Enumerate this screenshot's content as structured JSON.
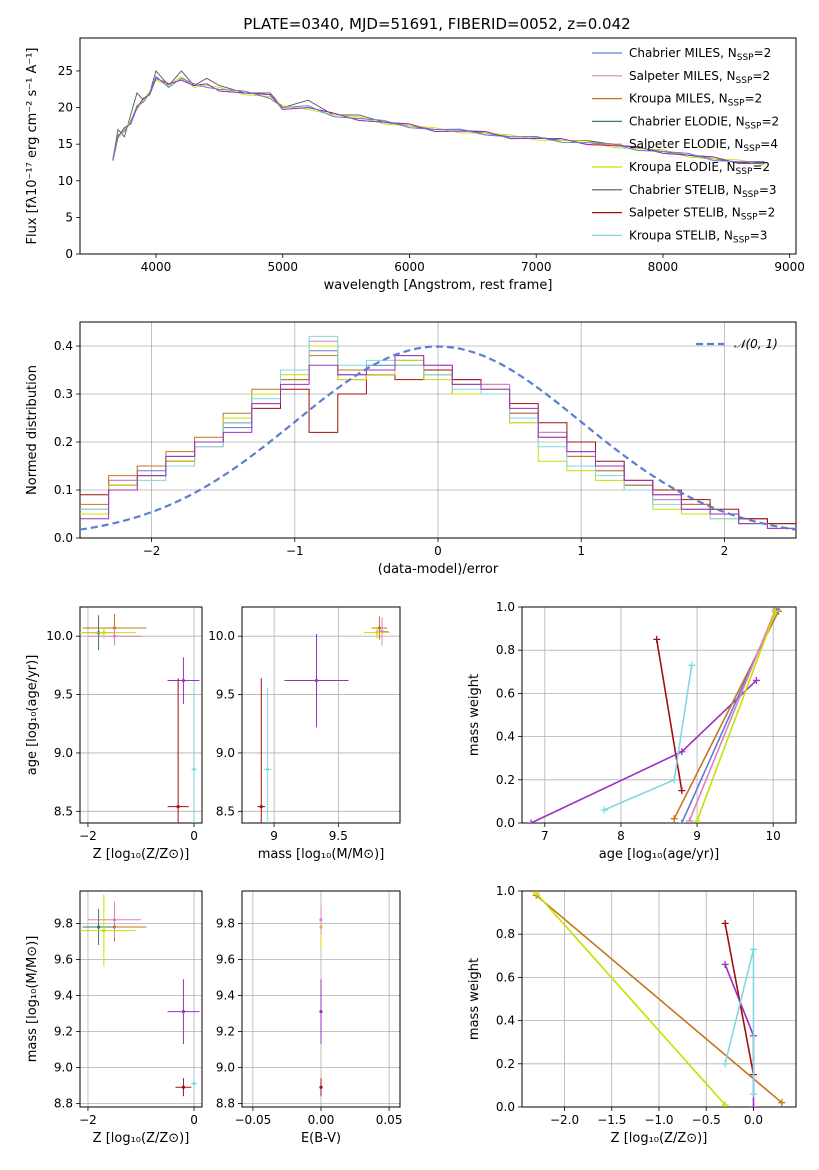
{
  "figure_title": "PLATE=0340, MJD=51691, FIBERID=0052, z=0.042",
  "colors": {
    "chabrier_miles": "#5b7fd0",
    "salpeter_miles": "#e07fbf",
    "kroupa_miles": "#c8741a",
    "chabrier_elodie": "#3a7a5a",
    "salpeter_elodie": "#e8732a",
    "kroupa_elodie": "#c8e000",
    "chabrier_stelib": "#555555",
    "salpeter_stelib": "#a01010",
    "kroupa_stelib": "#80d8e0",
    "model_purple": "#9b30c0",
    "gaussian": "#5b7fd0",
    "grid": "#b0b0b0"
  },
  "legend": [
    {
      "label": "Chabrier MILES, N",
      "sub": "SSP",
      "tail": "=2",
      "color_key": "chabrier_miles"
    },
    {
      "label": "Salpeter MILES, N",
      "sub": "SSP",
      "tail": "=2",
      "color_key": "salpeter_miles"
    },
    {
      "label": "Kroupa MILES, N",
      "sub": "SSP",
      "tail": "=2",
      "color_key": "kroupa_miles"
    },
    {
      "label": "Chabrier ELODIE, N",
      "sub": "SSP",
      "tail": "=2",
      "color_key": "chabrier_elodie"
    },
    {
      "label": "Salpeter ELODIE, N",
      "sub": "SSP",
      "tail": "=4",
      "color_key": "salpeter_elodie"
    },
    {
      "label": "Kroupa ELODIE, N",
      "sub": "SSP",
      "tail": "=2",
      "color_key": "kroupa_elodie"
    },
    {
      "label": "Chabrier STELIB, N",
      "sub": "SSP",
      "tail": "=3",
      "color_key": "chabrier_stelib"
    },
    {
      "label": "Salpeter STELIB, N",
      "sub": "SSP",
      "tail": "=2",
      "color_key": "salpeter_stelib"
    },
    {
      "label": "Kroupa STELIB, N",
      "sub": "SSP",
      "tail": "=3",
      "color_key": "kroupa_stelib"
    }
  ],
  "chart_data": [
    {
      "id": "spectrum",
      "type": "line",
      "xlabel": "wavelength [Angstrom, rest frame]",
      "ylabel": "Flux [fλ10⁻¹⁷ erg cm⁻² s⁻¹ A⁻¹]",
      "xlim": [
        3400,
        9050
      ],
      "ylim": [
        0,
        29.5
      ],
      "xticks": [
        4000,
        5000,
        6000,
        7000,
        8000,
        9000
      ],
      "yticks": [
        0,
        5,
        10,
        15,
        20,
        25
      ],
      "grid": false,
      "legend_position": "upper-right",
      "data_x": [
        3660,
        3700,
        3750,
        3800,
        3850,
        3900,
        3950,
        4000,
        4100,
        4200,
        4300,
        4400,
        4500,
        4700,
        4900,
        5000,
        5200,
        5400,
        5600,
        5800,
        6000,
        6200,
        6400,
        6600,
        6800,
        7000,
        7200,
        7400,
        7600,
        7800,
        8000,
        8200,
        8400,
        8600,
        8800
      ],
      "data_y": [
        13,
        17,
        16,
        19,
        22,
        21,
        22,
        25,
        23,
        25,
        23,
        24,
        23,
        22,
        22,
        20,
        21,
        19,
        19,
        18,
        17.5,
        17,
        17,
        16.5,
        16,
        16,
        15.5,
        15.5,
        15,
        14.5,
        14,
        13.5,
        13,
        12.5,
        12.5
      ],
      "model_y": [
        13,
        16,
        17,
        18,
        20,
        21,
        22,
        24,
        23,
        24,
        23,
        23,
        22.5,
        22,
        21.5,
        20,
        20,
        19,
        18.5,
        18,
        17.5,
        17,
        16.8,
        16.5,
        16,
        15.8,
        15.5,
        15.2,
        14.8,
        14.4,
        14,
        13.5,
        13,
        12.6,
        12.4
      ]
    },
    {
      "id": "residuals",
      "type": "line",
      "xlabel": "(data-model)/error",
      "ylabel": "Normed distribution",
      "xlim": [
        -2.5,
        2.5
      ],
      "ylim": [
        0,
        0.45
      ],
      "xticks": [
        -2,
        -1,
        0,
        1,
        2
      ],
      "yticks": [
        0.0,
        0.1,
        0.2,
        0.3,
        0.4
      ],
      "grid": true,
      "legend_position": "upper-right",
      "gaussian_label": "𝒩(0, 1)",
      "x": [
        -2.4,
        -2.2,
        -2.0,
        -1.8,
        -1.6,
        -1.4,
        -1.2,
        -1.0,
        -0.8,
        -0.6,
        -0.4,
        -0.2,
        0.0,
        0.2,
        0.4,
        0.6,
        0.8,
        1.0,
        1.2,
        1.4,
        1.6,
        1.8,
        2.0,
        2.2,
        2.4
      ],
      "series": [
        {
          "color_key": "chabrier_miles",
          "values": [
            0.05,
            0.12,
            0.14,
            0.17,
            0.2,
            0.23,
            0.3,
            0.33,
            0.39,
            0.34,
            0.36,
            0.37,
            0.35,
            0.33,
            0.32,
            0.26,
            0.22,
            0.18,
            0.15,
            0.11,
            0.08,
            0.07,
            0.05,
            0.04,
            0.03
          ]
        },
        {
          "color_key": "salpeter_miles",
          "values": [
            0.06,
            0.12,
            0.15,
            0.16,
            0.19,
            0.25,
            0.28,
            0.35,
            0.41,
            0.33,
            0.34,
            0.38,
            0.36,
            0.3,
            0.32,
            0.24,
            0.22,
            0.17,
            0.14,
            0.12,
            0.08,
            0.06,
            0.05,
            0.03,
            0.02
          ]
        },
        {
          "color_key": "kroupa_miles",
          "values": [
            0.07,
            0.13,
            0.15,
            0.18,
            0.21,
            0.26,
            0.31,
            0.33,
            0.38,
            0.35,
            0.35,
            0.36,
            0.34,
            0.32,
            0.3,
            0.26,
            0.21,
            0.17,
            0.14,
            0.11,
            0.09,
            0.07,
            0.05,
            0.04,
            0.03
          ]
        },
        {
          "color_key": "salpeter_stelib",
          "values": [
            0.09,
            0.11,
            0.13,
            0.16,
            0.2,
            0.24,
            0.27,
            0.31,
            0.22,
            0.3,
            0.34,
            0.33,
            0.35,
            0.33,
            0.3,
            0.28,
            0.24,
            0.2,
            0.16,
            0.12,
            0.1,
            0.08,
            0.06,
            0.04,
            0.03
          ]
        },
        {
          "color_key": "kroupa_elodie",
          "values": [
            0.05,
            0.11,
            0.13,
            0.16,
            0.2,
            0.25,
            0.3,
            0.34,
            0.4,
            0.33,
            0.34,
            0.37,
            0.33,
            0.3,
            0.31,
            0.24,
            0.16,
            0.14,
            0.12,
            0.1,
            0.06,
            0.05,
            0.04,
            0.03,
            0.02
          ]
        },
        {
          "color_key": "kroupa_stelib",
          "values": [
            0.06,
            0.1,
            0.12,
            0.15,
            0.19,
            0.24,
            0.29,
            0.35,
            0.42,
            0.36,
            0.37,
            0.36,
            0.34,
            0.31,
            0.3,
            0.25,
            0.19,
            0.15,
            0.13,
            0.1,
            0.07,
            0.06,
            0.04,
            0.03,
            0.02
          ]
        },
        {
          "color_key": "model_purple",
          "values": [
            0.04,
            0.1,
            0.13,
            0.17,
            0.2,
            0.22,
            0.28,
            0.32,
            0.36,
            0.34,
            0.35,
            0.38,
            0.36,
            0.32,
            0.31,
            0.27,
            0.21,
            0.18,
            0.15,
            0.12,
            0.09,
            0.06,
            0.05,
            0.03,
            0.02
          ]
        }
      ]
    },
    {
      "id": "age_vs_Z",
      "type": "scatter",
      "xlabel": "Z [log₁₀(Z/Z⊙)]",
      "ylabel": "age  [log₁₀(age/yr)]",
      "xlim": [
        -2.15,
        0.15
      ],
      "ylim": [
        8.4,
        10.25
      ],
      "xticks": [
        -2,
        0
      ],
      "yticks": [
        8.5,
        9.0,
        9.5,
        10.0
      ],
      "grid": true,
      "points": [
        {
          "x": -1.5,
          "y": 10.07,
          "xerr": 0.6,
          "yerr": 0.12,
          "color_key": "kroupa_miles"
        },
        {
          "x": -1.5,
          "y": 10.0,
          "xerr": 0.5,
          "yerr": 0.08,
          "color_key": "salpeter_miles"
        },
        {
          "x": -1.8,
          "y": 10.03,
          "xerr": 0.3,
          "yerr": 0.15,
          "color_key": "chabrier_elodie"
        },
        {
          "x": -1.7,
          "y": 10.03,
          "xerr": 0.6,
          "yerr": 0.05,
          "color_key": "kroupa_elodie"
        },
        {
          "x": -0.2,
          "y": 9.62,
          "xerr": 0.3,
          "yerr": 0.2,
          "color_key": "model_purple"
        },
        {
          "x": -0.3,
          "y": 8.54,
          "xerr": 0.2,
          "yerr": 1.1,
          "color_key": "salpeter_stelib"
        },
        {
          "x": 0.0,
          "y": 8.86,
          "xerr": 0.05,
          "yerr": 0.7,
          "color_key": "kroupa_stelib"
        }
      ]
    },
    {
      "id": "age_vs_mass",
      "type": "scatter",
      "xlabel": "mass [log₁₀(M/M⊙)]",
      "ylabel": "",
      "xlim": [
        8.75,
        9.98
      ],
      "ylim": [
        8.4,
        10.25
      ],
      "xticks": [
        9.0,
        9.5
      ],
      "yticks": [
        8.5,
        9.0,
        9.5,
        10.0
      ],
      "grid": true,
      "points": [
        {
          "x": 9.82,
          "y": 10.07,
          "xerr": 0.06,
          "yerr": 0.1,
          "color_key": "kroupa_miles"
        },
        {
          "x": 9.84,
          "y": 10.04,
          "xerr": 0.05,
          "yerr": 0.12,
          "color_key": "salpeter_miles"
        },
        {
          "x": 9.8,
          "y": 10.03,
          "xerr": 0.1,
          "yerr": 0.05,
          "color_key": "kroupa_elodie"
        },
        {
          "x": 9.33,
          "y": 9.62,
          "xerr": 0.25,
          "yerr": 0.4,
          "color_key": "model_purple"
        },
        {
          "x": 8.9,
          "y": 8.54,
          "xerr": 0.03,
          "yerr": 1.1,
          "color_key": "salpeter_stelib"
        },
        {
          "x": 8.95,
          "y": 8.86,
          "xerr": 0.03,
          "yerr": 0.7,
          "color_key": "kroupa_stelib"
        }
      ]
    },
    {
      "id": "mass_weight_vs_age",
      "type": "line",
      "xlabel": "age  [log₁₀(age/yr)]",
      "ylabel": "mass weight",
      "xlim": [
        6.7,
        10.3
      ],
      "ylim": [
        0,
        1.0
      ],
      "xticks": [
        7,
        8,
        9,
        10
      ],
      "yticks": [
        0.0,
        0.2,
        0.4,
        0.6,
        0.8,
        1.0
      ],
      "grid": true,
      "series": [
        {
          "color_key": "salpeter_stelib",
          "x": [
            8.47,
            8.8
          ],
          "y": [
            0.85,
            0.15
          ]
        },
        {
          "color_key": "model_purple",
          "x": [
            6.82,
            8.8,
            9.78
          ],
          "y": [
            0.0,
            0.33,
            0.66
          ]
        },
        {
          "color_key": "kroupa_stelib",
          "x": [
            7.78,
            8.7,
            8.93
          ],
          "y": [
            0.06,
            0.2,
            0.73
          ]
        },
        {
          "color_key": "kroupa_miles",
          "x": [
            8.7,
            10.07
          ],
          "y": [
            0.02,
            0.98
          ]
        },
        {
          "color_key": "chabrier_miles",
          "x": [
            8.8,
            10.05
          ],
          "y": [
            0.0,
            0.99
          ]
        },
        {
          "color_key": "salpeter_miles",
          "x": [
            8.9,
            10.02
          ],
          "y": [
            0.01,
            0.98
          ]
        },
        {
          "color_key": "kroupa_elodie",
          "x": [
            9.0,
            10.03
          ],
          "y": [
            0.01,
            0.98
          ]
        }
      ]
    },
    {
      "id": "mass_vs_Z",
      "type": "scatter",
      "xlabel": "Z [log₁₀(Z/Z⊙)]",
      "ylabel": "mass [log₁₀(M/M⊙)]",
      "xlim": [
        -2.15,
        0.15
      ],
      "ylim": [
        8.78,
        9.98
      ],
      "xticks": [
        -2,
        0
      ],
      "yticks": [
        8.8,
        9.0,
        9.2,
        9.4,
        9.6,
        9.8
      ],
      "grid": true,
      "points": [
        {
          "x": -1.5,
          "y": 9.78,
          "xerr": 0.6,
          "yerr": 0.08,
          "color_key": "kroupa_miles"
        },
        {
          "x": -1.5,
          "y": 9.82,
          "xerr": 0.5,
          "yerr": 0.1,
          "color_key": "salpeter_miles"
        },
        {
          "x": -1.8,
          "y": 9.78,
          "xerr": 0.3,
          "yerr": 0.1,
          "color_key": "chabrier_elodie"
        },
        {
          "x": -1.7,
          "y": 9.76,
          "xerr": 0.6,
          "yerr": 0.2,
          "color_key": "kroupa_elodie"
        },
        {
          "x": -0.2,
          "y": 9.31,
          "xerr": 0.3,
          "yerr": 0.18,
          "color_key": "model_purple"
        },
        {
          "x": -0.2,
          "y": 8.89,
          "xerr": 0.15,
          "yerr": 0.05,
          "color_key": "salpeter_stelib"
        },
        {
          "x": 0.0,
          "y": 8.91,
          "xerr": 0.05,
          "yerr": 0.05,
          "color_key": "kroupa_stelib"
        }
      ]
    },
    {
      "id": "mass_vs_EBV",
      "type": "scatter",
      "xlabel": "E(B-V)",
      "ylabel": "",
      "xlim": [
        -0.058,
        0.058
      ],
      "ylim": [
        8.78,
        9.98
      ],
      "xticks": [
        -0.05,
        0.0,
        0.05
      ],
      "yticks": [
        8.8,
        9.0,
        9.2,
        9.4,
        9.6,
        9.8
      ],
      "grid": true,
      "points": [
        {
          "x": 0.0,
          "y": 9.78,
          "xerr": 0.0,
          "yerr": 0.12,
          "color_key": "kroupa_elodie"
        },
        {
          "x": 0.0,
          "y": 9.82,
          "xerr": 0.0,
          "yerr": 0.08,
          "color_key": "salpeter_miles"
        },
        {
          "x": 0.0,
          "y": 9.31,
          "xerr": 0.0,
          "yerr": 0.18,
          "color_key": "model_purple"
        },
        {
          "x": 0.0,
          "y": 8.89,
          "xerr": 0.0,
          "yerr": 0.05,
          "color_key": "salpeter_stelib"
        }
      ]
    },
    {
      "id": "mass_weight_vs_Z",
      "type": "line",
      "xlabel": "Z [log₁₀(Z/Z⊙)]",
      "ylabel": "mass weight",
      "xlim": [
        -2.45,
        0.45
      ],
      "ylim": [
        0,
        1.0
      ],
      "xticks": [
        -2.0,
        -1.5,
        -1.0,
        -0.5,
        0.0
      ],
      "yticks": [
        0.0,
        0.2,
        0.4,
        0.6,
        0.8,
        1.0
      ],
      "grid": true,
      "series": [
        {
          "color_key": "kroupa_miles",
          "x": [
            -2.3,
            0.3
          ],
          "y": [
            0.98,
            0.02
          ]
        },
        {
          "color_key": "kroupa_elodie",
          "x": [
            -2.3,
            -0.3
          ],
          "y": [
            0.99,
            0.01
          ]
        },
        {
          "color_key": "salpeter_stelib",
          "x": [
            -0.3,
            0.0
          ],
          "y": [
            0.85,
            0.15
          ]
        },
        {
          "color_key": "model_purple",
          "x": [
            -0.3,
            0.0,
            0.0
          ],
          "y": [
            0.66,
            0.33,
            0.0
          ]
        },
        {
          "color_key": "kroupa_stelib",
          "x": [
            -0.3,
            0.0,
            0.0
          ],
          "y": [
            0.2,
            0.73,
            0.06
          ]
        }
      ]
    }
  ]
}
